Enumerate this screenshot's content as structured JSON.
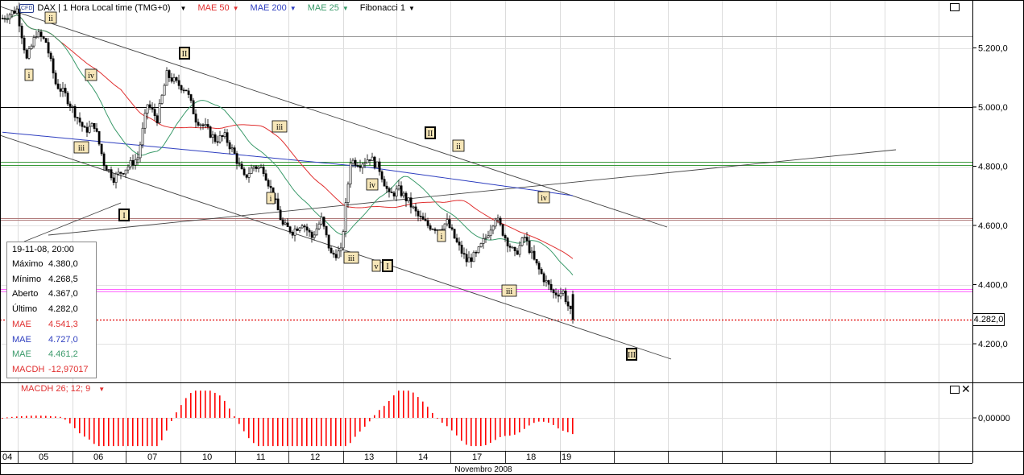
{
  "toolbar": {
    "symbol_badge": "CFD",
    "instrument": "DAX | 1 Hora Local time (TMG+0)",
    "mae50": "MAE 50",
    "mae200": "MAE 200",
    "mae25": "MAE 25",
    "fibonacci": "Fibonacci 1",
    "dropdown_glyph": "▼"
  },
  "colors": {
    "candle": "#000000",
    "mae50": "#e03030",
    "mae200": "#3040c0",
    "mae25": "#3a9a6a",
    "macd": "#ff0000",
    "fib_magenta": "#ff66ff",
    "fib_green": "#3a9a3a",
    "fib_brown": "#b07a7a"
  },
  "info_box": {
    "title": "19-11-08, 20:00",
    "rows": [
      {
        "label": "Máximo",
        "value": "4.380,0",
        "color": "#000000"
      },
      {
        "label": "Mínimo",
        "value": "4.268,5",
        "color": "#000000"
      },
      {
        "label": "Aberto",
        "value": "4.367,0",
        "color": "#000000"
      },
      {
        "label": "Último",
        "value": "4.282,0",
        "color": "#000000"
      },
      {
        "label": "MAE",
        "value": "4.541,3",
        "color": "#e03030"
      },
      {
        "label": "MAE",
        "value": "4.727,0",
        "color": "#3040c0"
      },
      {
        "label": "MAE",
        "value": "4.461,2",
        "color": "#3a9a6a"
      },
      {
        "label": "MACDH",
        "value": "-12,97017",
        "color": "#e03030"
      }
    ]
  },
  "last_price_label": "4.282,0",
  "chart_data": [
    {
      "type": "candlestick",
      "title": "DAX | 1 Hora Local time (TMG+0)",
      "y_ticks": [
        "5.200,0",
        "5.000,0",
        "4.800,0",
        "4.600,0",
        "4.400,0",
        "4.200,0"
      ],
      "y_tick_values": [
        5200,
        5000,
        4800,
        4600,
        4400,
        4200
      ],
      "ylim": [
        4110,
        5370
      ],
      "x_ticks": [
        "04",
        "05",
        "06",
        "07",
        "10",
        "11",
        "12",
        "13",
        "14",
        "17",
        "18",
        "19"
      ],
      "x_axis_label": "Novembro 2008",
      "last_price": 4282.0,
      "horizontal_levels": [
        {
          "value": 5240,
          "color": "#9a9a9a"
        },
        {
          "value": 5000,
          "color": "#000000"
        },
        {
          "value": 4815,
          "color": "#3a9a3a"
        },
        {
          "value": 4805,
          "color": "#3a9a3a"
        },
        {
          "value": 4625,
          "color": "#b07a7a"
        },
        {
          "value": 4618,
          "color": "#b07a7a"
        },
        {
          "value": 4385,
          "color": "#ff66ff"
        },
        {
          "value": 4378,
          "color": "#ff66ff"
        }
      ],
      "wave_labels": [
        {
          "text": "ii",
          "boxed_bold": false
        },
        {
          "text": "i",
          "boxed_bold": false
        },
        {
          "text": "iv",
          "boxed_bold": false
        },
        {
          "text": "iii",
          "boxed_bold": false
        },
        {
          "text": "I",
          "boxed_bold": true
        },
        {
          "text": "II",
          "boxed_bold": true
        },
        {
          "text": "iii",
          "boxed_bold": false
        },
        {
          "text": "i",
          "boxed_bold": false
        },
        {
          "text": "iv",
          "boxed_bold": false
        },
        {
          "text": "iii",
          "boxed_bold": false
        },
        {
          "text": "v",
          "boxed_bold": false
        },
        {
          "text": "I",
          "boxed_bold": true
        },
        {
          "text": "II",
          "boxed_bold": true
        },
        {
          "text": "ii",
          "boxed_bold": false
        },
        {
          "text": "i",
          "boxed_bold": false
        },
        {
          "text": "iv",
          "boxed_bold": false
        },
        {
          "text": "iii",
          "boxed_bold": false
        },
        {
          "text": "III",
          "boxed_bold": true
        }
      ],
      "series": [
        {
          "name": "MAE 50",
          "color": "#e03030"
        },
        {
          "name": "MAE 200",
          "color": "#3040c0"
        },
        {
          "name": "MAE 25",
          "color": "#3a9a6a"
        }
      ]
    },
    {
      "type": "bar",
      "title": "MACDH 26; 12; 9",
      "y_ticks": [
        "0,00000"
      ],
      "y_tick_values": [
        0
      ],
      "ylim": [
        -80,
        80
      ]
    }
  ]
}
